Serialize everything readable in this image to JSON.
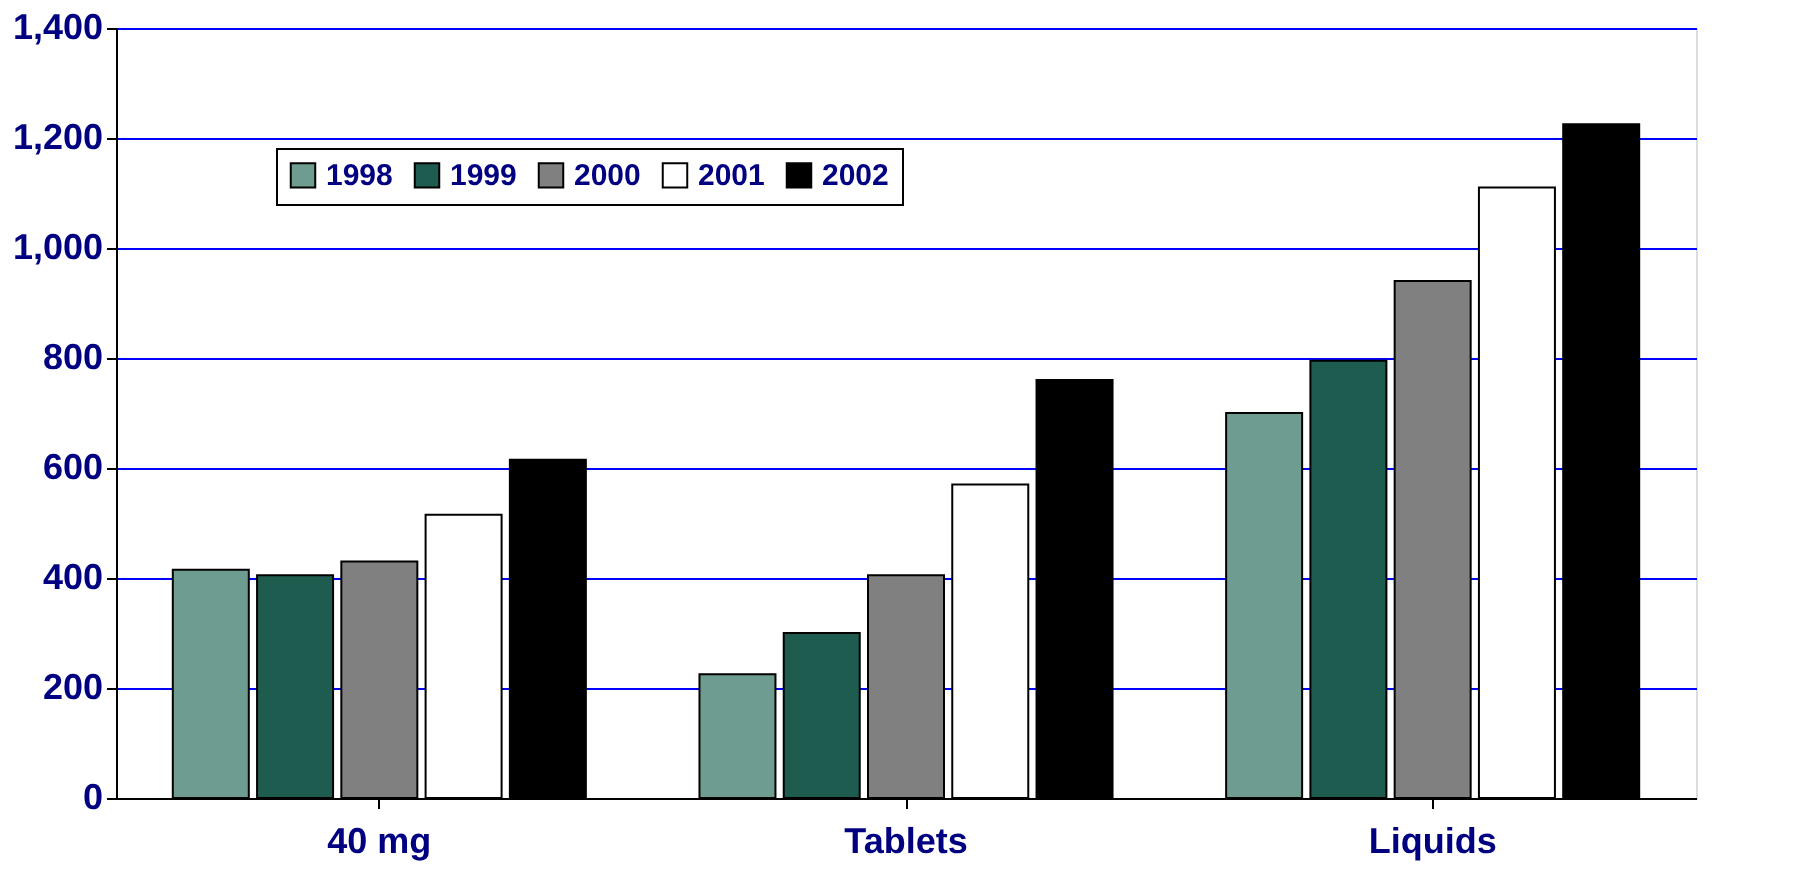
{
  "chart_data": {
    "type": "bar",
    "categories": [
      "40 mg",
      "Tablets",
      "Liquids"
    ],
    "series": [
      {
        "name": "1998",
        "color": "#6e9c90",
        "values": [
          415,
          225,
          700
        ]
      },
      {
        "name": "1999",
        "color": "#1f5c50",
        "values": [
          405,
          300,
          795
        ]
      },
      {
        "name": "2000",
        "color": "#808080",
        "values": [
          430,
          405,
          940
        ]
      },
      {
        "name": "2001",
        "color": "#ffffff",
        "values": [
          515,
          570,
          1110
        ]
      },
      {
        "name": "2002",
        "color": "#000000",
        "values": [
          615,
          760,
          1225
        ]
      }
    ],
    "ylim": [
      0,
      1400
    ],
    "yticks": [
      {
        "value": 0,
        "label": "0"
      },
      {
        "value": 200,
        "label": "200"
      },
      {
        "value": 400,
        "label": "400"
      },
      {
        "value": 600,
        "label": "600"
      },
      {
        "value": 800,
        "label": "800"
      },
      {
        "value": 1000,
        "label": "1,000"
      },
      {
        "value": 1200,
        "label": "1,200"
      },
      {
        "value": 1400,
        "label": "1,400"
      }
    ],
    "grid": "y",
    "legend": "top left"
  }
}
